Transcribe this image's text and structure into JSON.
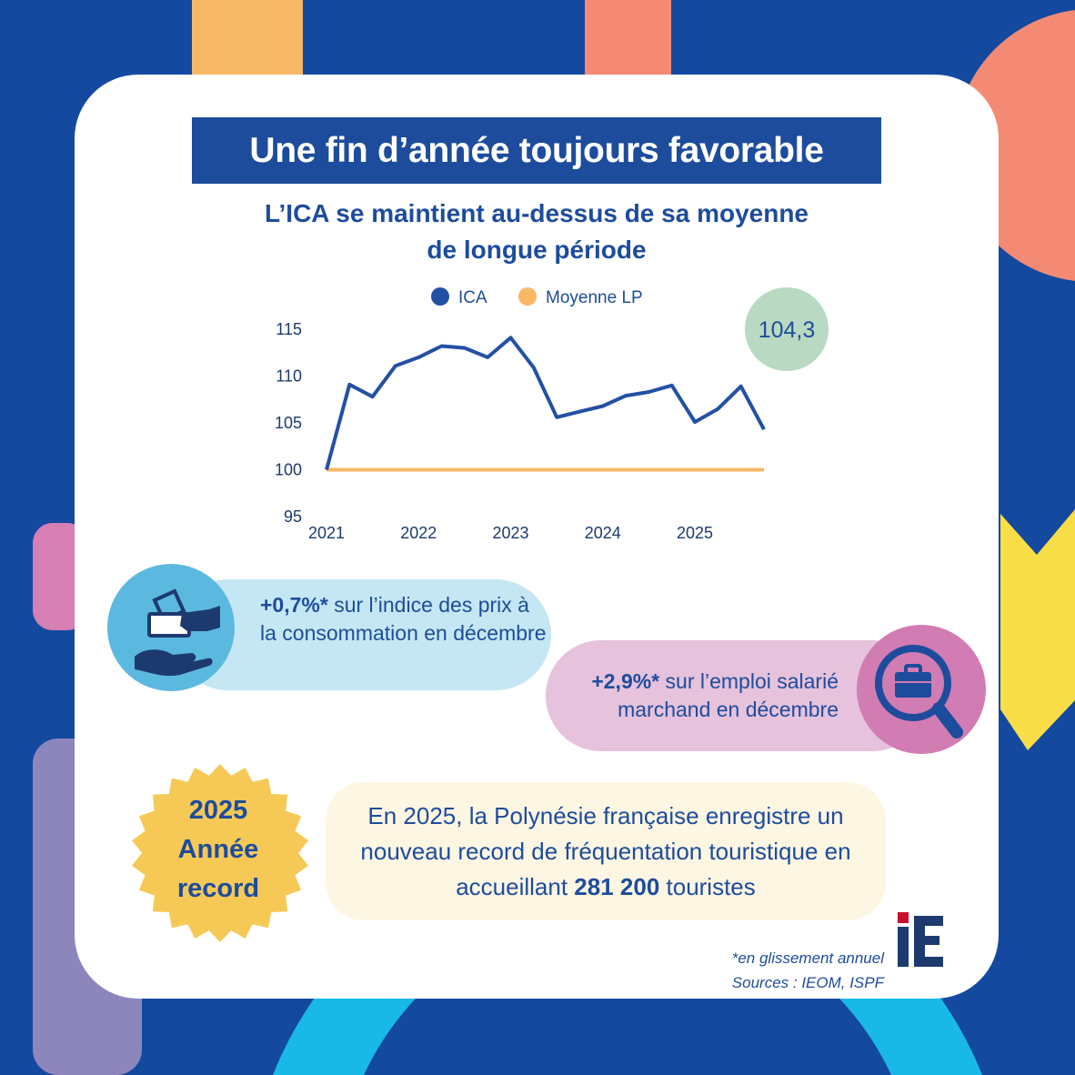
{
  "title": "Une fin d’année toujours favorable",
  "subtitle": [
    "L’ICA se maintient au-dessus de sa moyenne",
    "de longue période"
  ],
  "colors": {
    "background": "#1449a0",
    "title_bg": "#1d4c9c",
    "text": "#1d4c9c",
    "ica_line": "#2350a3",
    "mean_line": "#f7b866",
    "latest_bubble": "#b9d9c2",
    "cpi_circle": "#5bb9e0",
    "cpi_pill": "#c5e7f4",
    "jobs_circle": "#d17cb2",
    "jobs_pill": "#e6c2dc",
    "badge": "#f6c957",
    "tourism_bg": "#fdf6e3"
  },
  "chart_data": {
    "type": "line",
    "legend": [
      "ICA",
      "Moyenne LP"
    ],
    "legend_position": "top",
    "x_ticks": [
      "2021",
      "2022",
      "2023",
      "2024",
      "2025"
    ],
    "x": [
      2021.0,
      2021.25,
      2021.5,
      2021.75,
      2022.0,
      2022.25,
      2022.5,
      2022.75,
      2023.0,
      2023.25,
      2023.5,
      2023.75,
      2024.0,
      2024.25,
      2024.5,
      2024.75,
      2025.0,
      2025.25,
      2025.5,
      2025.75
    ],
    "series": [
      {
        "name": "ICA",
        "values": [
          100.0,
          109.1,
          107.8,
          111.1,
          112.0,
          113.2,
          113.0,
          112.0,
          114.1,
          110.9,
          105.6,
          106.2,
          106.8,
          107.9,
          108.3,
          109.0,
          105.1,
          106.5,
          108.9,
          104.3
        ]
      },
      {
        "name": "Moyenne LP",
        "values": [
          100,
          100,
          100,
          100,
          100,
          100,
          100,
          100,
          100,
          100,
          100,
          100,
          100,
          100,
          100,
          100,
          100,
          100,
          100,
          100
        ]
      }
    ],
    "y_ticks": [
      "115",
      "110",
      "105",
      "100",
      "95"
    ],
    "ylim": [
      95,
      115
    ],
    "latest_label": "104,3"
  },
  "indicators": {
    "cpi": {
      "value": "+0,7%*",
      "text": " sur l’indice des prix à la consommation en décembre",
      "icon": "money-hand-icon"
    },
    "jobs": {
      "value": "+2,9%*",
      "text": " sur l’emploi salarié marchand en décembre",
      "icon": "briefcase-search-icon"
    }
  },
  "badge": {
    "line1": "2025",
    "line2": "Année",
    "line3": "record"
  },
  "tourism": {
    "text_before": "En 2025, la Polynésie française enregistre un nouveau record de fréquentation touristique en accueillant ",
    "highlight": "281 200",
    "text_after": " touristes"
  },
  "footnote": {
    "line1": "*en glissement annuel",
    "line2": "Sources : IEOM, ISPF"
  },
  "logo": {
    "text": "iE"
  }
}
